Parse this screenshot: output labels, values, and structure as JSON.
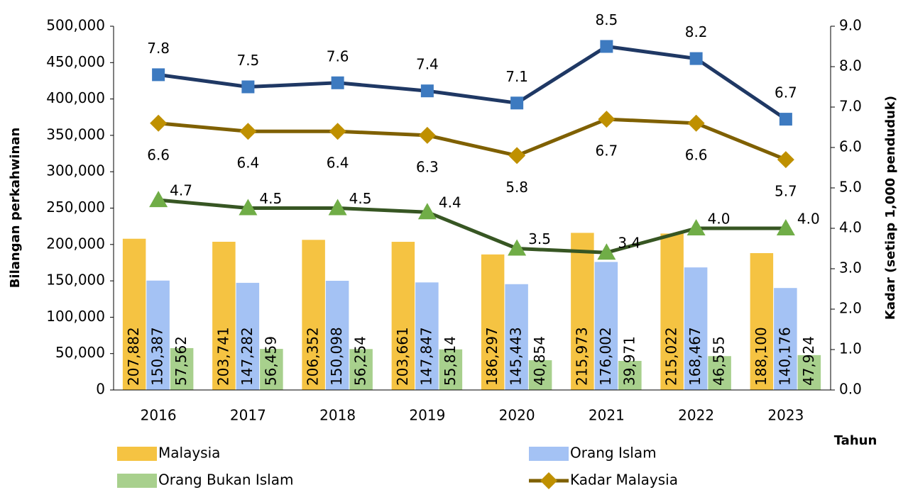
{
  "chart_data": {
    "type": "bar",
    "categories": [
      "2016",
      "2017",
      "2018",
      "2019",
      "2020",
      "2021",
      "2022",
      "2023"
    ],
    "ylabel": "Bilangan perkahwinan",
    "y2label": "Kadar (setiap 1,000 penduduk)",
    "xlabel": "Tahun",
    "ylim": [
      0,
      500000
    ],
    "yticks": [
      0,
      {
        "value": 50000,
        "label": "50,000"
      },
      {
        "value": 100000,
        "label": "100,000"
      },
      {
        "value": 150000,
        "label": "150,000"
      },
      {
        "value": 200000,
        "label": "200,000"
      },
      {
        "value": 250000,
        "label": "250,000"
      },
      {
        "value": 300000,
        "label": "300,000"
      },
      {
        "value": 350000,
        "label": "350,000"
      },
      {
        "value": 400000,
        "label": "400,000"
      },
      {
        "value": 450000,
        "label": "450,000"
      },
      {
        "value": 500000,
        "label": "500,000"
      }
    ],
    "y2lim": [
      0,
      9
    ],
    "y2ticks": [
      {
        "value": 0,
        "label": "0.0"
      },
      {
        "value": 1,
        "label": "1.0"
      },
      {
        "value": 2,
        "label": "2.0"
      },
      {
        "value": 3,
        "label": "3.0"
      },
      {
        "value": 4,
        "label": "4.0"
      },
      {
        "value": 5,
        "label": "5.0"
      },
      {
        "value": 6,
        "label": "6.0"
      },
      {
        "value": 7,
        "label": "7.0"
      },
      {
        "value": 8,
        "label": "8.0"
      },
      {
        "value": 9,
        "label": "9.0"
      }
    ],
    "series": [
      {
        "name": "Malaysia",
        "type": "bar",
        "color": "#f5c342",
        "values": [
          207882,
          203741,
          206352,
          203661,
          186297,
          215973,
          215022,
          188100
        ],
        "value_labels": [
          "207,882",
          "203,741",
          "206,352",
          "203,661",
          "186,297",
          "215,973",
          "215,022",
          "188,100"
        ]
      },
      {
        "name": "Orang Islam",
        "type": "bar",
        "color": "#a4c2f4",
        "values": [
          150387,
          147282,
          150098,
          147847,
          145443,
          176002,
          168467,
          140176
        ],
        "value_labels": [
          "150,387",
          "147,282",
          "150,098",
          "147,847",
          "145,443",
          "176,002",
          "168,467",
          "140,176"
        ]
      },
      {
        "name": "Orang Bukan Islam",
        "type": "bar",
        "color": "#a8d08d",
        "values": [
          57562,
          56459,
          56254,
          55814,
          40854,
          39971,
          46555,
          47924
        ],
        "value_labels": [
          "57,562",
          "56,459",
          "56,254",
          "55,814",
          "40,854",
          "39,971",
          "46,555",
          "47,924"
        ]
      },
      {
        "type": "line",
        "axis": "y2",
        "color": "#1f3864",
        "marker": "square",
        "marker_color": "#3d7ac0",
        "values": [
          7.8,
          7.5,
          7.6,
          7.4,
          7.1,
          8.5,
          8.2,
          6.7
        ]
      },
      {
        "name": "Kadar Malaysia",
        "type": "line",
        "axis": "y2",
        "color": "#7f6000",
        "marker": "diamond",
        "marker_color": "#bf9000",
        "values": [
          6.6,
          6.4,
          6.4,
          6.3,
          5.8,
          6.7,
          6.6,
          5.7
        ]
      },
      {
        "type": "line",
        "axis": "y2",
        "color": "#375623",
        "marker": "triangle",
        "marker_color": "#70ad47",
        "values": [
          4.7,
          4.5,
          4.5,
          4.4,
          3.5,
          3.4,
          4.0,
          4.0
        ],
        "value_labels": [
          "4.7",
          "4.5",
          "4.5",
          "4.4",
          "3.5",
          "3.4",
          "4.0",
          "4.0"
        ]
      }
    ]
  }
}
